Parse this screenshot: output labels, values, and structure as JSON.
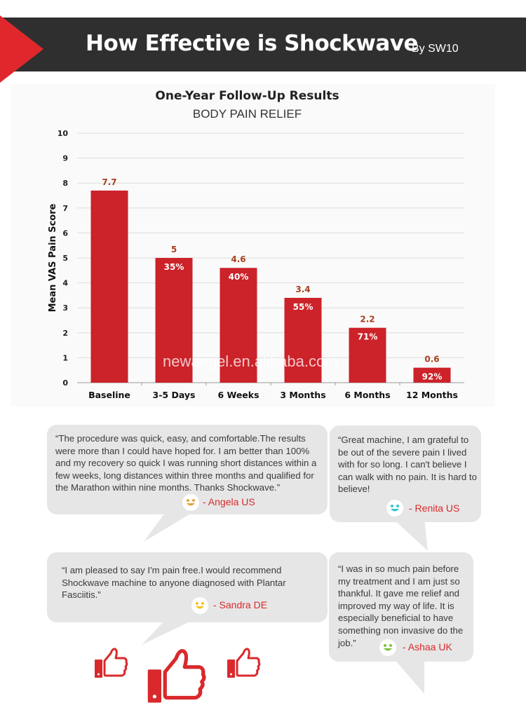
{
  "header": {
    "title": "How Effective is Shockwave",
    "byline": "By SW10"
  },
  "chart_data": {
    "type": "bar",
    "title": "One-Year Follow-Up Results",
    "subtitle": "BODY PAIN RELIEF",
    "ylabel": "Mean VAS Pain Score",
    "xlabel": "",
    "ylim": [
      0,
      10
    ],
    "yticks": [
      "0",
      "1",
      "2",
      "3",
      "4",
      "5",
      "6",
      "7",
      "8",
      "9",
      "10"
    ],
    "categories": [
      "Baseline",
      "3-5 Days",
      "6 Weeks",
      "3 Months",
      "6 Months",
      "12 Months"
    ],
    "values": [
      7.7,
      5,
      4.6,
      3.4,
      2.2,
      0.6
    ],
    "value_labels": [
      "7.7",
      "5",
      "4.6",
      "3.4",
      "2.2",
      "0.6"
    ],
    "reduction_labels": [
      "",
      "35%",
      "40%",
      "55%",
      "71%",
      "92%"
    ],
    "grid": true,
    "bar_color": "#cc2229",
    "value_label_color": "#a8401f"
  },
  "watermark": "newangel.en.alibaba.com",
  "testimonials": [
    {
      "quote": "“The procedure was quick, easy, and comfortable.The results were more than I could have hoped for. I am better than 100% and my recovery so quick I was running short distances within a few weeks, long distances within three months and qualified for the Marathon within nine months. Thanks Shockwave.”",
      "author": "- Angela  US",
      "smiley": "orange-smiley-icon",
      "color": "#e8a33a"
    },
    {
      "quote": "“Great machine, I am grateful to be out of the severe pain I lived with for so long. I can't believe I can walk with no pain. It is hard to believe!",
      "author": "- Renita US",
      "smiley": "teal-smiley-icon",
      "color": "#35c6cf"
    },
    {
      "quote": "“I am pleased to say I'm pain free.I would recommend Shockwave machine to anyone diagnosed with Plantar Fasciitis.”",
      "author": "- Sandra DE",
      "smiley": "yellow-smiley-icon",
      "color": "#f2c21b"
    },
    {
      "quote": "“I was in so much pain before my treatment and I am just so thankful. It gave me relief and improved my way of life. It is especially beneficial to have something non invasive do the job.”",
      "author": "- Ashaa UK",
      "smiley": "green-smiley-icon",
      "color": "#7cc43a"
    }
  ],
  "icons": {
    "thumbs": "thumbs-up-icon",
    "accent": "#e0282c"
  }
}
